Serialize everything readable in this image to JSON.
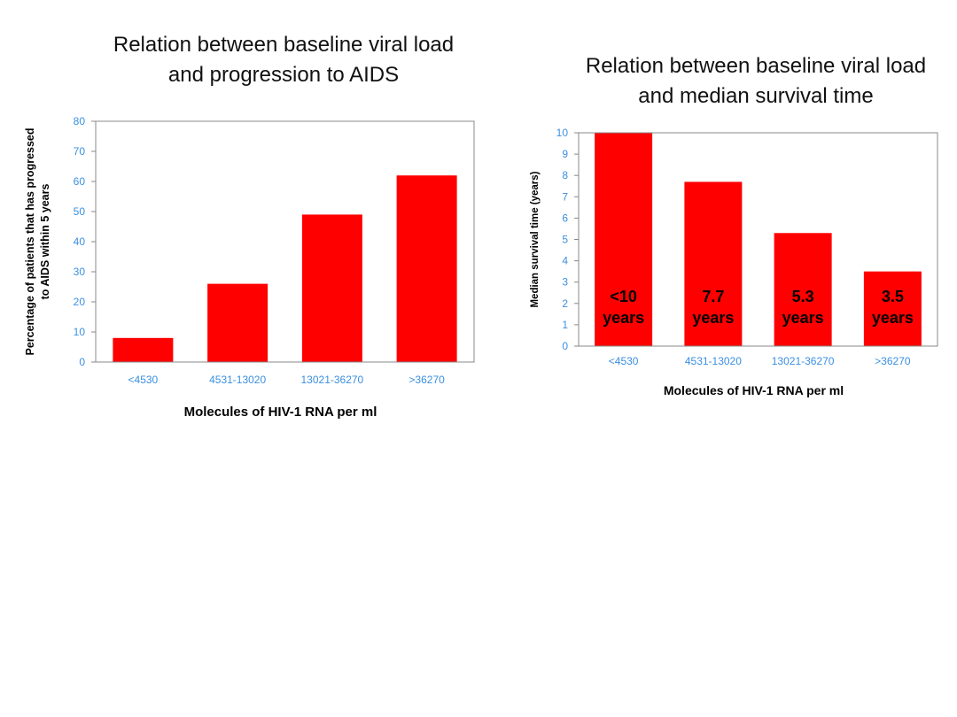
{
  "colors": {
    "bar": "#ff0000",
    "tick": "#3a8fe0",
    "axis": "#888888"
  },
  "chart_data": [
    {
      "type": "bar",
      "title_lines": [
        "Relation between baseline viral load",
        "and progression to AIDS"
      ],
      "categories": [
        "<4530",
        "4531-13020",
        "13021-36270",
        ">36270"
      ],
      "values": [
        8,
        26,
        49,
        62
      ],
      "ylabel_lines": [
        "Percentage of patients that has progressed",
        "to AIDS within 5 years"
      ],
      "xlabel": "Molecules of HIV-1 RNA per ml",
      "ylim": [
        0,
        80
      ],
      "yticks": [
        0,
        10,
        20,
        30,
        40,
        50,
        60,
        70,
        80
      ],
      "grid": false
    },
    {
      "type": "bar",
      "title_lines": [
        "Relation between baseline viral load",
        "and median survival time"
      ],
      "categories": [
        "<4530",
        "4531-13020",
        "13021-36270",
        ">36270"
      ],
      "values": [
        10,
        7.7,
        5.3,
        3.5
      ],
      "data_labels": [
        [
          "<10",
          "years"
        ],
        [
          "7.7",
          "years"
        ],
        [
          "5.3",
          "years"
        ],
        [
          "3.5",
          "years"
        ]
      ],
      "ylabel_lines": [
        "Median survival time (years)"
      ],
      "xlabel": "Molecules of HIV-1 RNA per ml",
      "ylim": [
        0,
        10
      ],
      "yticks": [
        0,
        1,
        2,
        3,
        4,
        5,
        6,
        7,
        8,
        9,
        10
      ],
      "grid": false
    }
  ]
}
